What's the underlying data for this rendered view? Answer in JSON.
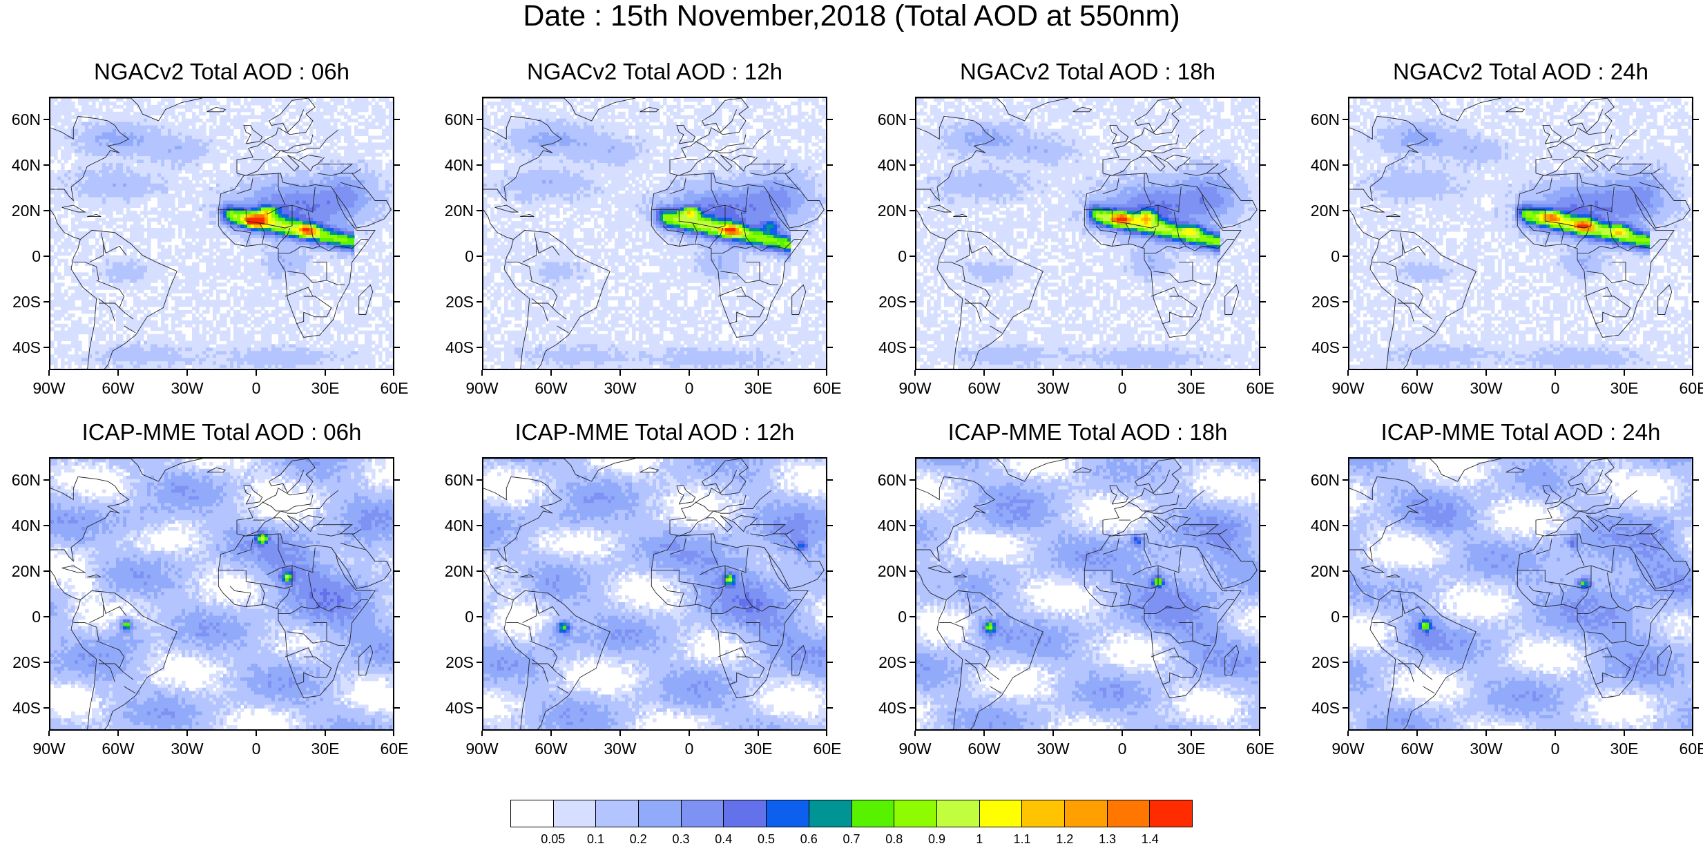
{
  "title": "Date : 15th November,2018 (Total AOD at 550nm)",
  "map_extent": {
    "lon": [
      -90,
      60
    ],
    "lat": [
      -50,
      70
    ]
  },
  "lat_ticks": [
    {
      "value": 60,
      "label": "60N"
    },
    {
      "value": 40,
      "label": "40N"
    },
    {
      "value": 20,
      "label": "20N"
    },
    {
      "value": 0,
      "label": "0"
    },
    {
      "value": -20,
      "label": "20S"
    },
    {
      "value": -40,
      "label": "40S"
    }
  ],
  "lon_ticks": [
    {
      "value": -90,
      "label": "90W"
    },
    {
      "value": -60,
      "label": "60W"
    },
    {
      "value": -30,
      "label": "30W"
    },
    {
      "value": 0,
      "label": "0"
    },
    {
      "value": 30,
      "label": "30E"
    },
    {
      "value": 60,
      "label": "60E"
    }
  ],
  "panels": [
    {
      "title": "NGACv2 Total AOD : 06h",
      "model": "NGACv2",
      "hour": "06h",
      "dust_shift": [
        0,
        0
      ],
      "hotspots": [
        [
          -1,
          16,
          1.3
        ],
        [
          4,
          20,
          0.9
        ],
        [
          22,
          12,
          0.9
        ]
      ]
    },
    {
      "title": "NGACv2 Total AOD : 12h",
      "model": "NGACv2",
      "hour": "12h",
      "dust_shift": [
        1,
        -1
      ],
      "hotspots": [
        [
          0,
          20,
          0.9
        ],
        [
          18,
          12,
          0.9
        ],
        [
          35,
          14,
          0.7
        ]
      ]
    },
    {
      "title": "NGACv2 Total AOD : 18h",
      "model": "NGACv2",
      "hour": "18h",
      "dust_shift": [
        0,
        0
      ],
      "hotspots": [
        [
          -1,
          17,
          0.9
        ],
        [
          10,
          18,
          0.9
        ],
        [
          30,
          12,
          0.7
        ]
      ]
    },
    {
      "title": "NGACv2 Total AOD : 24h",
      "model": "NGACv2",
      "hour": "24h",
      "dust_shift": [
        -1,
        0
      ],
      "hotspots": [
        [
          -2,
          18,
          0.8
        ],
        [
          12,
          14,
          0.9
        ],
        [
          28,
          12,
          0.7
        ]
      ]
    },
    {
      "title": "ICAP-MME Total AOD : 06h",
      "model": "ICAP-MME",
      "hour": "06h",
      "hotspots": [
        [
          2,
          35,
          0.9
        ],
        [
          13,
          18,
          0.8
        ],
        [
          -57,
          -3,
          0.8
        ]
      ]
    },
    {
      "title": "ICAP-MME Total AOD : 12h",
      "model": "ICAP-MME",
      "hour": "12h",
      "hotspots": [
        [
          17,
          17,
          0.8
        ],
        [
          -55,
          -4,
          0.8
        ],
        [
          48,
          32,
          0.5
        ]
      ]
    },
    {
      "title": "ICAP-MME Total AOD : 18h",
      "model": "ICAP-MME",
      "hour": "18h",
      "hotspots": [
        [
          15,
          16,
          0.8
        ],
        [
          -58,
          -4,
          0.8
        ],
        [
          6,
          34,
          0.6
        ]
      ]
    },
    {
      "title": "ICAP-MME Total AOD : 24h",
      "model": "ICAP-MME",
      "hour": "24h",
      "hotspots": [
        [
          12,
          15,
          0.8
        ],
        [
          -57,
          -3,
          0.7
        ],
        [
          7,
          33,
          0.5
        ]
      ]
    }
  ],
  "colorbar": {
    "colors": [
      "#ffffff",
      "#d6dfff",
      "#b3c4ff",
      "#92aafa",
      "#7e92f3",
      "#6372ea",
      "#0d5fee",
      "#009494",
      "#58f100",
      "#8efb00",
      "#c3fe3e",
      "#ffff00",
      "#ffc300",
      "#ffa000",
      "#ff7700",
      "#ff2c00"
    ],
    "labels": [
      "0.05",
      "0.1",
      "0.2",
      "0.3",
      "0.4",
      "0.5",
      "0.6",
      "0.7",
      "0.8",
      "0.9",
      "1",
      "1.1",
      "1.2",
      "1.3",
      "1.4"
    ]
  }
}
